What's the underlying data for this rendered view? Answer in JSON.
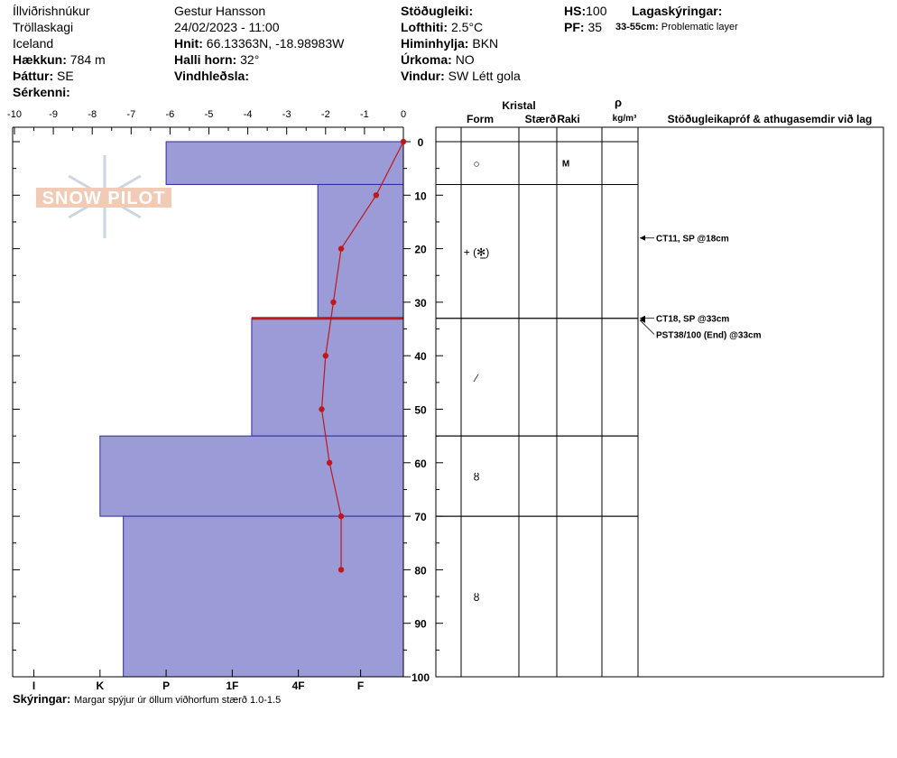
{
  "header": {
    "location": "Íllviðrishnúkur",
    "region": "Tröllaskagi",
    "country": "Iceland",
    "elevation_label": "Hækkun:",
    "elevation_value": "784 m",
    "aspect_label": "Þáttur:",
    "aspect_value": "SE",
    "features_label": "Sérkenni:",
    "observer": "Gestur Hansson",
    "datetime": "24/02/2023 - 11:00",
    "coords_label": "Hnit:",
    "coords_value": "66.13363N, -18.98983W",
    "slope_label": "Halli horn:",
    "slope_value": "32°",
    "wind_loading_label": "Vindhleðsla:",
    "stability_label": "Stöðugleiki:",
    "air_temp_label": "Lofthiti:",
    "air_temp_value": "2.5°C",
    "sky_label": "Himinhylja:",
    "sky_value": "BKN",
    "precip_label": "Úrkoma:",
    "precip_value": "NO",
    "wind_label": "Vindur:",
    "wind_value": "SW Létt gola",
    "hs_label": "HS:",
    "hs_value": "100",
    "pf_label": "PF:",
    "pf_value": "35",
    "layer_notes_label": "Lagaskýringar:",
    "layer_note_range": "33-55cm:",
    "layer_note_text": "Problematic layer"
  },
  "logo_text": "SNOW PILOT",
  "columns": {
    "crystal": "Kristal",
    "form": "Form",
    "size": "Stærð",
    "moisture": "Raki",
    "rho": "ρ",
    "density_unit": "kg/m³",
    "tests": "Stöðugleikapróf & athugasemdir við lag"
  },
  "footer": {
    "label": "Skýringar:",
    "text": "Margar spýjur úr öllum viðhorfum stærð 1.0-1.5"
  },
  "colors": {
    "layer_fill": "#9b9bd8",
    "layer_border": "#2b2b9a",
    "temp_line": "#c0171c",
    "problem_line": "#c0171c"
  },
  "chart_data": {
    "type": "snow-profile",
    "temperature_axis": {
      "ticks": [
        "-10",
        "-9",
        "-8",
        "-7",
        "-6",
        "-5",
        "-4",
        "-3",
        "-2",
        "-1",
        "0"
      ],
      "range": [
        -10,
        0
      ]
    },
    "depth_axis": {
      "ticks": [
        "0",
        "10",
        "20",
        "30",
        "40",
        "50",
        "60",
        "70",
        "80",
        "90",
        "100"
      ],
      "range": [
        0,
        100
      ]
    },
    "hardness_axis": {
      "ticks": [
        "I",
        "K",
        "P",
        "1F",
        "4F",
        "F"
      ]
    },
    "hardness_tick_temps": [
      -9.5,
      -7.8,
      -6.1,
      -4.4,
      -2.7,
      -1.1
    ],
    "temperature_profile": [
      {
        "depth": 0,
        "temp": 0
      },
      {
        "depth": 10,
        "temp": -0.7
      },
      {
        "depth": 20,
        "temp": -1.6
      },
      {
        "depth": 30,
        "temp": -1.8
      },
      {
        "depth": 40,
        "temp": -2.0
      },
      {
        "depth": 50,
        "temp": -2.1
      },
      {
        "depth": 60,
        "temp": -1.9
      },
      {
        "depth": 70,
        "temp": -1.6
      },
      {
        "depth": 80,
        "temp": -1.6
      }
    ],
    "layers": [
      {
        "top": 0,
        "bottom": 8,
        "hardness_temp": -6.1,
        "form": "○",
        "size": "",
        "moisture": "M"
      },
      {
        "top": 8,
        "bottom": 33,
        "hardness_temp": -2.2,
        "form": "+ (⁂̸)",
        "size": "",
        "moisture": ""
      },
      {
        "top": 33,
        "bottom": 55,
        "hardness_temp": -3.9,
        "form": "⟋",
        "size": "",
        "moisture": ""
      },
      {
        "top": 55,
        "bottom": 70,
        "hardness_temp": -7.8,
        "form": "ꝏ",
        "size": "",
        "moisture": ""
      },
      {
        "top": 70,
        "bottom": 100,
        "hardness_temp": -7.2,
        "form": "ꝏ",
        "size": "",
        "moisture": ""
      }
    ],
    "layer_form_symbols": [
      "○",
      "+ (✻̲)",
      "⁄",
      "ȣ",
      "ȣ"
    ],
    "problem_layer_depth": 33,
    "stability_tests": [
      {
        "depth": 18,
        "text": "CT11, SP @18cm"
      },
      {
        "depth": 33,
        "text": "CT18, SP @33cm"
      },
      {
        "depth": 36,
        "text": "PST38/100 (End) @33cm"
      }
    ]
  }
}
